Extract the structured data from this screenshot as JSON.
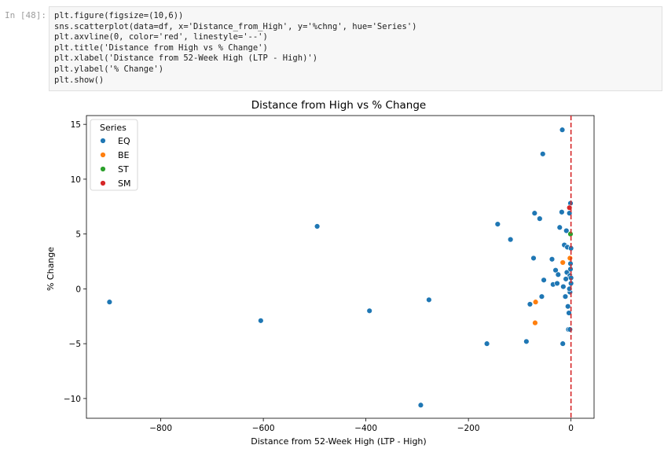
{
  "cell": {
    "prompt": "In [48]:",
    "code_lines": [
      "plt.figure(figsize=(10,6))",
      "sns.scatterplot(data=df, x='Distance_from_High', y='%chng', hue='Series')",
      "plt.axvline(0, color='red', linestyle='--')",
      "plt.title('Distance from High vs % Change')",
      "plt.xlabel('Distance from 52-Week High (LTP - High)')",
      "plt.ylabel('% Change')",
      "plt.show()"
    ]
  },
  "chart_data": {
    "type": "scatter",
    "title": "Distance from High vs % Change",
    "xlabel": "Distance from 52-Week High (LTP - High)",
    "ylabel": "% Change",
    "xlim": [
      -945,
      45
    ],
    "ylim": [
      -11.8,
      15.8
    ],
    "xticks": [
      -800,
      -600,
      -400,
      -200,
      0
    ],
    "yticks": [
      -10,
      -5,
      0,
      5,
      10,
      15
    ],
    "xtick_labels": [
      "−800",
      "−600",
      "−400",
      "−200",
      "0"
    ],
    "ytick_labels": [
      "−10",
      "−5",
      "0",
      "5",
      "10",
      "15"
    ],
    "grid": false,
    "legend": {
      "title": "Series",
      "placement": "upper-left"
    },
    "vline": {
      "x": 0,
      "color": "#d62728",
      "style": "dashed"
    },
    "series": [
      {
        "name": "EQ",
        "color": "#1f77b4",
        "points": [
          [
            -900,
            -1.2
          ],
          [
            -605,
            -2.9
          ],
          [
            -495,
            5.7
          ],
          [
            -393,
            -2.0
          ],
          [
            -293,
            -10.6
          ],
          [
            -277,
            -1.0
          ],
          [
            -164,
            -5.0
          ],
          [
            -143,
            5.9
          ],
          [
            -118,
            4.5
          ],
          [
            -87,
            -4.8
          ],
          [
            -80,
            -1.4
          ],
          [
            -73,
            2.8
          ],
          [
            -71,
            6.9
          ],
          [
            -61,
            6.4
          ],
          [
            -57,
            -0.7
          ],
          [
            -55,
            12.3
          ],
          [
            -53,
            0.8
          ],
          [
            -37,
            2.7
          ],
          [
            -35,
            0.4
          ],
          [
            -30,
            1.7
          ],
          [
            -27,
            0.5
          ],
          [
            -25,
            1.3
          ],
          [
            -22,
            5.6
          ],
          [
            -18,
            7.0
          ],
          [
            -17,
            14.5
          ],
          [
            -16,
            -5.0
          ],
          [
            -15,
            0.2
          ],
          [
            -13,
            4.0
          ],
          [
            -11,
            -0.7
          ],
          [
            -10,
            0.9
          ],
          [
            -9,
            5.3
          ],
          [
            -8,
            1.5
          ],
          [
            -7,
            3.8
          ],
          [
            -6,
            -1.6
          ],
          [
            -5,
            -3.7
          ],
          [
            -4,
            -2.2
          ],
          [
            -3,
            6.9
          ],
          [
            -2,
            -0.3
          ],
          [
            -2,
            1.2
          ],
          [
            -1,
            2.3
          ],
          [
            -1,
            7.8
          ],
          [
            0,
            0.5
          ],
          [
            0,
            3.7
          ],
          [
            -2,
            -3.7
          ],
          [
            -3,
            0.0
          ],
          [
            -1,
            1.8
          ],
          [
            0,
            1.0
          ]
        ]
      },
      {
        "name": "BE",
        "color": "#ff7f0e",
        "points": [
          [
            -69,
            -1.2
          ],
          [
            -70,
            -3.1
          ],
          [
            -16,
            2.4
          ],
          [
            -2,
            2.8
          ]
        ]
      },
      {
        "name": "ST",
        "color": "#2ca02c",
        "points": [
          [
            -1,
            5.0
          ]
        ]
      },
      {
        "name": "SM",
        "color": "#d62728",
        "points": [
          [
            -3,
            7.4
          ]
        ]
      }
    ]
  }
}
